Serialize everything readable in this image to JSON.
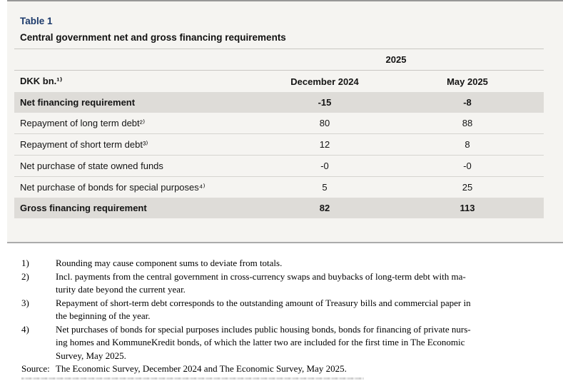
{
  "panel": {
    "table_label": "Table 1",
    "title": "Central government net and gross financing requirements"
  },
  "table": {
    "year_header": "2025",
    "unit_header": "DKK bn.¹⁾",
    "col_headers": [
      "December 2024",
      "May 2025"
    ],
    "rows": [
      {
        "label": "Net financing requirement",
        "dec2024": "-15",
        "may2025": "-8"
      },
      {
        "label": "Repayment of long term debt²⁾",
        "dec2024": "80",
        "may2025": "88"
      },
      {
        "label": "Repayment of short term debt³⁾",
        "dec2024": "12",
        "may2025": "8"
      },
      {
        "label": "Net purchase of state owned funds",
        "dec2024": "-0",
        "may2025": "-0"
      },
      {
        "label": "Net purchase of bonds for special purposes⁴⁾",
        "dec2024": "5",
        "may2025": "25"
      },
      {
        "label": "Gross financing requirement",
        "dec2024": "82",
        "may2025": "113"
      }
    ]
  },
  "footnotes": [
    {
      "marker": "1)",
      "text": "Rounding may cause component sums to deviate from totals."
    },
    {
      "marker": "2)",
      "text": "Incl. payments from the central government in cross-currency swaps and buybacks of long-term debt with ma-\nturity date beyond the current year."
    },
    {
      "marker": "3)",
      "text": "Repayment of short-term debt corresponds to the outstanding amount of Treasury bills and commercial paper in\nthe beginning of the year."
    },
    {
      "marker": "4)",
      "text": "Net purchases of bonds for special purposes includes public housing bonds, bonds for financing of private nurs-\ning homes and KommuneKredit bonds, of which the latter two are included for the first time in The Economic\nSurvey, May 2025."
    }
  ],
  "source": {
    "label": "Source:",
    "text": "The Economic Survey, December 2024 and The Economic Survey, May 2025."
  },
  "colors": {
    "accent_navy": "#1c3a6b",
    "panel_background": "#f5f4f1",
    "band_background": "#dedcd8",
    "rule": "#c9c7c3"
  }
}
